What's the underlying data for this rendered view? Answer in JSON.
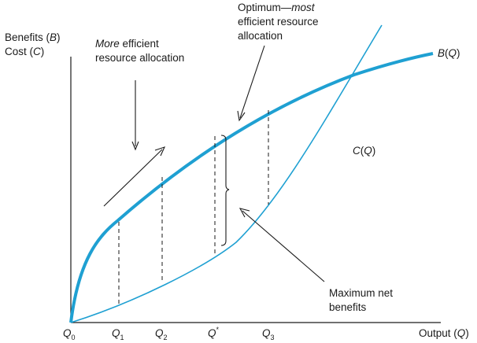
{
  "colors": {
    "curve": "#1fa0d2",
    "ink": "#1a1a1a",
    "background": "#ffffff"
  },
  "axes": {
    "y_label_line1": [
      "Benefits (",
      "B",
      ")"
    ],
    "y_label_line2": [
      "Cost (",
      "C",
      ")"
    ],
    "x_label": [
      "Output (",
      "Q",
      ")"
    ]
  },
  "curves": {
    "benefit_label": [
      "B",
      "(",
      "Q",
      ")"
    ],
    "cost_label": [
      "C",
      "(",
      "Q",
      ")"
    ]
  },
  "ticks": [
    {
      "main": "Q",
      "sub": "0",
      "sup": ""
    },
    {
      "main": "Q",
      "sub": "1",
      "sup": ""
    },
    {
      "main": "Q",
      "sub": "2",
      "sup": ""
    },
    {
      "main": "Q",
      "sub": "",
      "sup": "*"
    },
    {
      "main": "Q",
      "sub": "3",
      "sup": ""
    }
  ],
  "annotations": {
    "more_efficient": {
      "line1_italic": "More",
      "line1_rest": " efficient",
      "line2": "resource allocation"
    },
    "optimum": {
      "line1_plain": "Optimum—",
      "line1_italic": "most",
      "line2": "efficient resource",
      "line3": "allocation"
    },
    "max_net": {
      "line1": "Maximum net",
      "line2": "benefits"
    }
  }
}
